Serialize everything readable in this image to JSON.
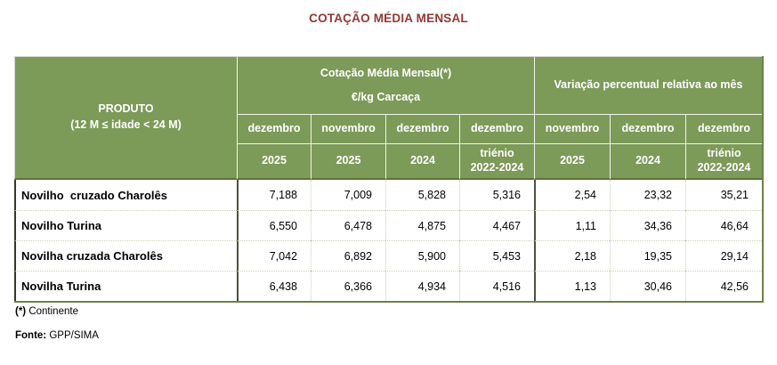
{
  "title": "COTAÇÃO MÉDIA MENSAL",
  "colors": {
    "header_green": "#7c9a58",
    "title_red": "#943735",
    "border_olive": "#6f8049",
    "border_dark": "#35392c",
    "dotted_separator": "#c6d2b3"
  },
  "table": {
    "product_header": {
      "line1": "PRODUTO",
      "line2": "(12 M ≤ idade < 24 M)"
    },
    "group1": {
      "title": "Cotação Média Mensal(*)",
      "subtitle": "€/kg Carcaça"
    },
    "group2": {
      "title": "Variação percentual relativa  ao mês"
    },
    "months": [
      "dezembro",
      "novembro",
      "dezembro",
      "dezembro",
      "novembro",
      "dezembro",
      "dezembro"
    ],
    "years": [
      "2025",
      "2025",
      "2024",
      "triénio\n2022-2024",
      "2025",
      "2024",
      "triénio\n2022-2024"
    ],
    "rows": [
      {
        "name": "Novilho  cruzado Charolês",
        "values": [
          "7,188",
          "7,009",
          "5,828",
          "5,316",
          "2,54",
          "23,32",
          "35,21"
        ]
      },
      {
        "name": "Novilho Turina",
        "values": [
          "6,550",
          "6,478",
          "4,875",
          "4,467",
          "1,11",
          "34,36",
          "46,64"
        ]
      },
      {
        "name": "Novilha cruzada Charolês",
        "values": [
          "7,042",
          "6,892",
          "5,900",
          "5,453",
          "2,18",
          "19,35",
          "29,14"
        ]
      },
      {
        "name": "Novilha Turina",
        "values": [
          "6,438",
          "6,366",
          "4,934",
          "4,516",
          "1,13",
          "30,46",
          "42,56"
        ]
      }
    ]
  },
  "footnote": {
    "marker": "(*)",
    "text": " Continente"
  },
  "source": {
    "label": "Fonte:",
    "text": " GPP/SIMA"
  },
  "chart_data": {
    "type": "table",
    "title": "COTAÇÃO MÉDIA MENSAL",
    "column_groups": [
      {
        "label": "Cotação Média Mensal(*) €/kg Carcaça",
        "span": 4
      },
      {
        "label": "Variação percentual relativa ao mês",
        "span": 3
      }
    ],
    "columns": [
      "PRODUTO (12 M ≤ idade < 24 M)",
      "dezembro 2025",
      "novembro 2025",
      "dezembro 2024",
      "dezembro triénio 2022-2024",
      "novembro 2025",
      "dezembro 2024",
      "dezembro triénio 2022-2024"
    ],
    "rows": [
      [
        "Novilho cruzado Charolês",
        7.188,
        7.009,
        5.828,
        5.316,
        2.54,
        23.32,
        35.21
      ],
      [
        "Novilho Turina",
        6.55,
        6.478,
        4.875,
        4.467,
        1.11,
        34.36,
        46.64
      ],
      [
        "Novilha cruzada Charolês",
        7.042,
        6.892,
        5.9,
        5.453,
        2.18,
        19.35,
        29.14
      ],
      [
        "Novilha Turina",
        6.438,
        6.366,
        4.934,
        4.516,
        1.13,
        30.46,
        42.56
      ]
    ],
    "footnote": "(*) Continente",
    "source": "Fonte: GPP/SIMA"
  }
}
